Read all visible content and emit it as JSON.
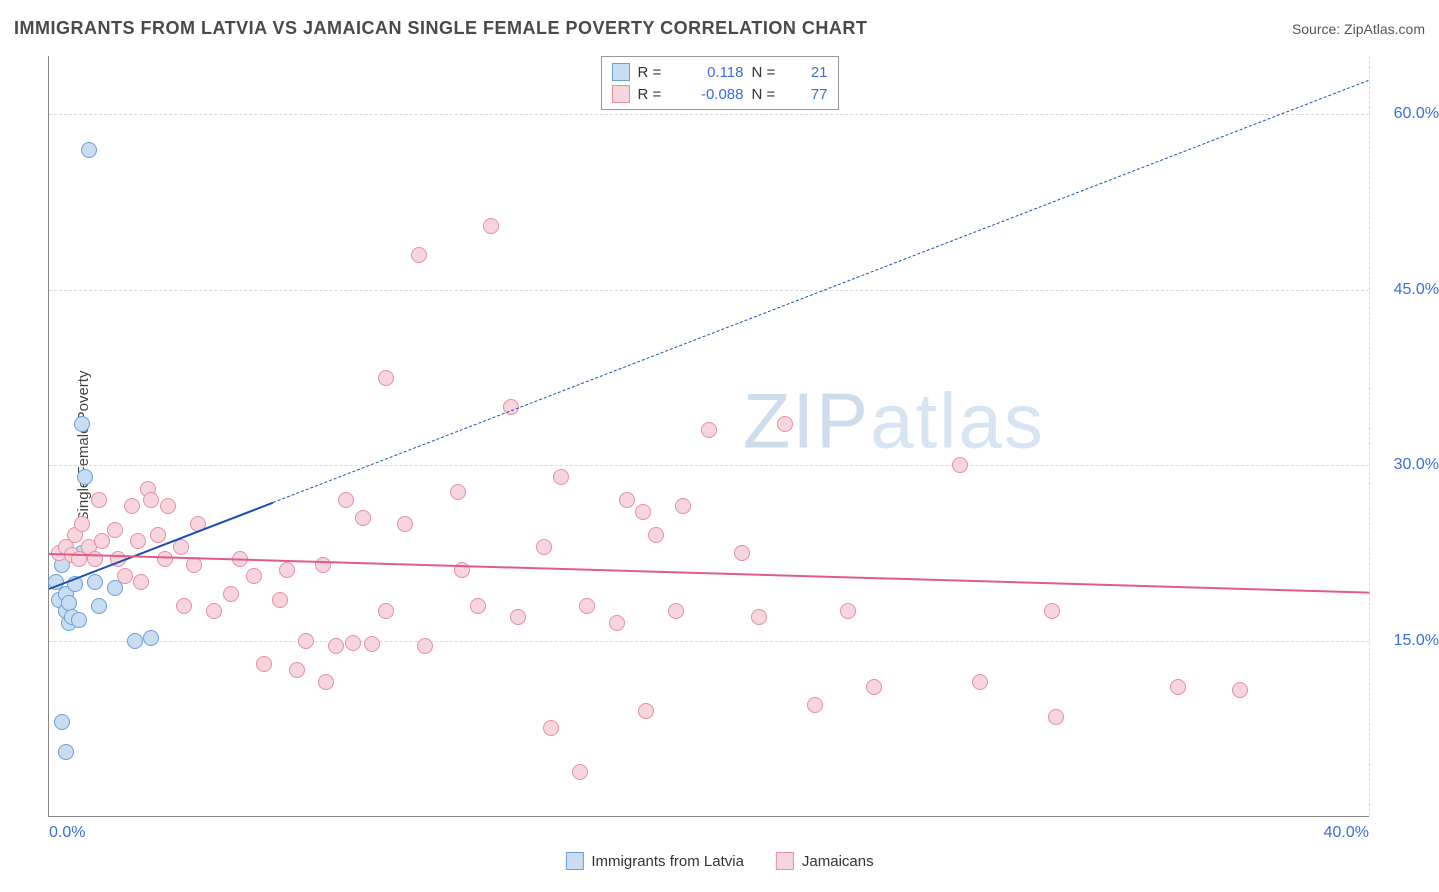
{
  "title": "IMMIGRANTS FROM LATVIA VS JAMAICAN SINGLE FEMALE POVERTY CORRELATION CHART",
  "source": "Source: ZipAtlas.com",
  "ylabel": "Single Female Poverty",
  "watermark_a": "ZIP",
  "watermark_b": "atlas",
  "chart": {
    "type": "scatter",
    "xlim": [
      0,
      40
    ],
    "ylim": [
      0,
      65
    ],
    "xticks": [
      0,
      40
    ],
    "yticks": [
      15,
      30,
      45,
      60
    ],
    "xtick_fmt": [
      "0.0%",
      "40.0%"
    ],
    "ytick_fmt": [
      "15.0%",
      "30.0%",
      "45.0%",
      "60.0%"
    ],
    "grid_color": "#d8d8d8",
    "background_color": "#ffffff",
    "axis_color": "#888888",
    "tick_label_color": "#3d6dd9",
    "tick_fontsize": 16,
    "marker_radius": 8,
    "marker_stroke_width": 1.5,
    "series": [
      {
        "name": "Immigrants from Latvia",
        "fill": "#c8dcf2",
        "stroke": "#6a9fd6",
        "R": "0.118",
        "N": "21",
        "trend": {
          "color": "#1d4fb0",
          "y_at_x0": 19.5,
          "y_at_x40": 63.0,
          "solid_until_x": 6.8
        },
        "points": [
          [
            0.2,
            20
          ],
          [
            0.3,
            18.5
          ],
          [
            0.4,
            21.5
          ],
          [
            0.5,
            17.5
          ],
          [
            0.5,
            19
          ],
          [
            0.6,
            16.5
          ],
          [
            0.6,
            18.2
          ],
          [
            0.7,
            17
          ],
          [
            0.8,
            19.8
          ],
          [
            0.9,
            16.8
          ],
          [
            1.0,
            22.5
          ],
          [
            1.0,
            33.5
          ],
          [
            1.1,
            29
          ],
          [
            1.2,
            57
          ],
          [
            1.4,
            20
          ],
          [
            1.5,
            18
          ],
          [
            2.0,
            19.5
          ],
          [
            2.6,
            15
          ],
          [
            3.1,
            15.2
          ],
          [
            0.4,
            8
          ],
          [
            0.5,
            5.5
          ]
        ]
      },
      {
        "name": "Jamaicans",
        "fill": "#f7d5de",
        "stroke": "#e48fa6",
        "R": "-0.088",
        "N": "77",
        "trend": {
          "color": "#e05c86",
          "y_at_x0": 22.5,
          "y_at_x40": 19.2,
          "solid_until_x": 40
        },
        "points": [
          [
            0.3,
            22.5
          ],
          [
            0.5,
            23
          ],
          [
            0.7,
            22.3
          ],
          [
            0.8,
            24
          ],
          [
            0.9,
            22
          ],
          [
            1.0,
            25
          ],
          [
            1.2,
            23.0
          ],
          [
            1.4,
            22
          ],
          [
            1.5,
            27
          ],
          [
            1.6,
            23.5
          ],
          [
            2.0,
            24.5
          ],
          [
            2.1,
            22
          ],
          [
            2.3,
            20.5
          ],
          [
            2.5,
            26.5
          ],
          [
            2.7,
            23.5
          ],
          [
            2.8,
            20
          ],
          [
            3.0,
            28
          ],
          [
            3.1,
            27
          ],
          [
            3.3,
            24
          ],
          [
            3.5,
            22
          ],
          [
            3.6,
            26.5
          ],
          [
            4.0,
            23
          ],
          [
            4.1,
            18
          ],
          [
            4.4,
            21.5
          ],
          [
            4.5,
            25
          ],
          [
            5.0,
            17.5
          ],
          [
            5.5,
            19
          ],
          [
            5.8,
            22
          ],
          [
            6.2,
            20.5
          ],
          [
            6.5,
            13
          ],
          [
            7.0,
            18.5
          ],
          [
            7.2,
            21
          ],
          [
            7.5,
            12.5
          ],
          [
            7.8,
            15
          ],
          [
            8.3,
            21.5
          ],
          [
            8.4,
            11.5
          ],
          [
            8.7,
            14.5
          ],
          [
            9.0,
            27
          ],
          [
            9.2,
            14.8
          ],
          [
            9.5,
            25.5
          ],
          [
            9.8,
            14.7
          ],
          [
            10.2,
            17.5
          ],
          [
            10.2,
            37.5
          ],
          [
            10.8,
            25
          ],
          [
            11.2,
            48
          ],
          [
            11.4,
            14.5
          ],
          [
            12.4,
            27.7
          ],
          [
            12.5,
            21
          ],
          [
            13.0,
            18
          ],
          [
            13.4,
            50.5
          ],
          [
            14.0,
            35
          ],
          [
            14.2,
            17
          ],
          [
            15.0,
            23
          ],
          [
            15.2,
            7.5
          ],
          [
            15.5,
            29
          ],
          [
            16.1,
            3.8
          ],
          [
            16.3,
            18
          ],
          [
            17.2,
            16.5
          ],
          [
            17.5,
            27
          ],
          [
            18.0,
            26
          ],
          [
            18.1,
            9
          ],
          [
            18.4,
            24
          ],
          [
            19.0,
            17.5
          ],
          [
            19.2,
            26.5
          ],
          [
            20.0,
            33
          ],
          [
            21.0,
            22.5
          ],
          [
            21.5,
            17
          ],
          [
            22.3,
            33.5
          ],
          [
            23.2,
            9.5
          ],
          [
            24.2,
            17.5
          ],
          [
            25.0,
            11
          ],
          [
            27.6,
            30
          ],
          [
            28.2,
            11.5
          ],
          [
            30.4,
            17.5
          ],
          [
            30.5,
            8.5
          ],
          [
            34.2,
            11
          ],
          [
            36.1,
            10.8
          ]
        ]
      }
    ]
  },
  "legend_bottom": [
    {
      "label": "Immigrants from Latvia",
      "fill": "#c8dcf2",
      "stroke": "#6a9fd6"
    },
    {
      "label": "Jamaicans",
      "fill": "#f7d5de",
      "stroke": "#e48fa6"
    }
  ]
}
